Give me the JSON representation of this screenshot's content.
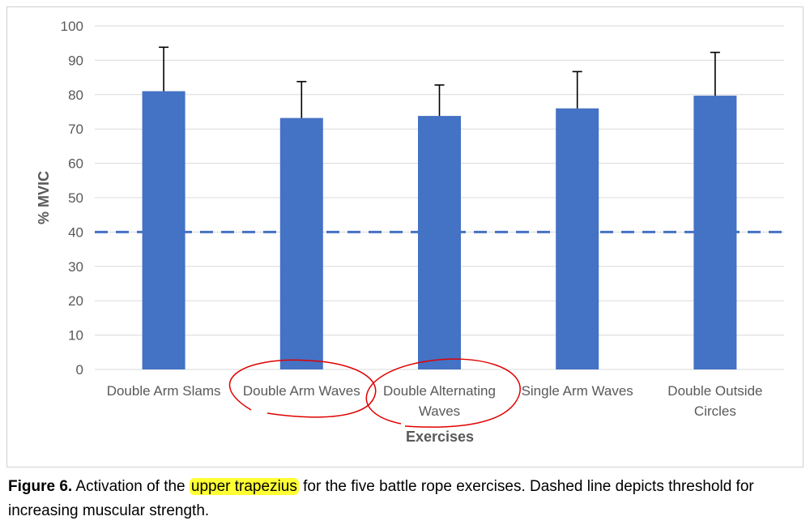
{
  "chart_data": {
    "type": "bar",
    "categories": [
      "Double Arm Slams",
      "Double Arm Waves",
      "Double Alternating Waves",
      "Single Arm Waves",
      "Double Outside Circles"
    ],
    "category_label_lines": [
      [
        "Double Arm Slams"
      ],
      [
        "Double Arm Waves"
      ],
      [
        "Double Alternating",
        "Waves"
      ],
      [
        "Single Arm Waves"
      ],
      [
        "Double Outside",
        "Circles"
      ]
    ],
    "values": [
      81,
      73.2,
      73.8,
      76,
      79.7
    ],
    "error_plus": [
      12.8,
      10.6,
      9,
      10.7,
      12.6
    ],
    "reference_line": {
      "value": 40,
      "style": "dashed"
    },
    "xlabel": "Exercises",
    "ylabel": "% MVIC",
    "ylim": [
      0,
      100
    ],
    "yticks": [
      "0",
      "10",
      "20",
      "30",
      "40",
      "50",
      "60",
      "70",
      "80",
      "90",
      "100"
    ],
    "grid": true,
    "bar_color": "#4472c4",
    "error_bar_color": "#000000",
    "reference_line_color": "#4472c4",
    "grid_color": "#d9d9d9",
    "annotation_color": "#e00000",
    "circled_categories": [
      "Double Arm Waves",
      "Double Alternating Waves"
    ]
  },
  "caption": {
    "label": "Figure 6.",
    "text_before": " Activation of the ",
    "highlighted": "upper trapezius",
    "text_after": " for the five battle rope exercises. Dashed line depicts threshold for increasing muscular strength.",
    "highlight_color": "#ffff33"
  }
}
